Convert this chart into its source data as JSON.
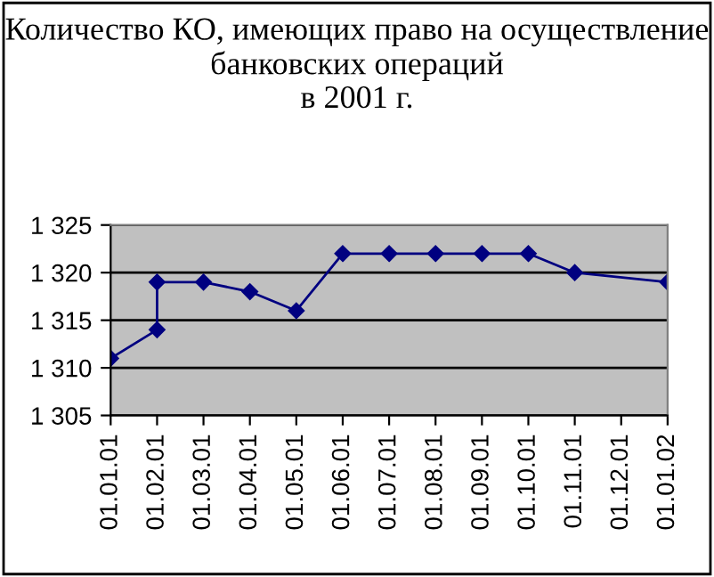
{
  "chart_data": {
    "type": "line",
    "title": "Количество КО, имеющих право на осуществление банковских операций\nв 2001 г.",
    "categories": [
      "01.01.01",
      "01.02.01",
      "01.03.01",
      "01.04.01",
      "01.05.01",
      "01.06.01",
      "01.07.01",
      "01.08.01",
      "01.09.01",
      "01.10.01",
      "01.11.01",
      "01.12.01",
      "01.01.02"
    ],
    "series": [
      {
        "color": "#000080",
        "x": [
          "01.01.01",
          "01.02.01",
          "01.02.01",
          "01.03.01",
          "01.04.01",
          "01.05.01",
          "01.06.01",
          "01.07.01",
          "01.08.01",
          "01.09.01",
          "01.10.01",
          "01.11.01",
          "01.01.02"
        ],
        "values": [
          1311,
          1314,
          1319,
          1319,
          1318,
          1316,
          1322,
          1322,
          1322,
          1322,
          1322,
          1320,
          1319
        ]
      }
    ],
    "ylim": [
      1305,
      1325
    ],
    "yticks": [
      {
        "value": 1305,
        "label": "1 305"
      },
      {
        "value": 1310,
        "label": "1 310"
      },
      {
        "value": 1315,
        "label": "1 315"
      },
      {
        "value": 1320,
        "label": "1 320"
      },
      {
        "value": 1325,
        "label": "1 325"
      }
    ],
    "grid": "y",
    "marker": "diamond",
    "line_style": "solid",
    "legend": false
  }
}
